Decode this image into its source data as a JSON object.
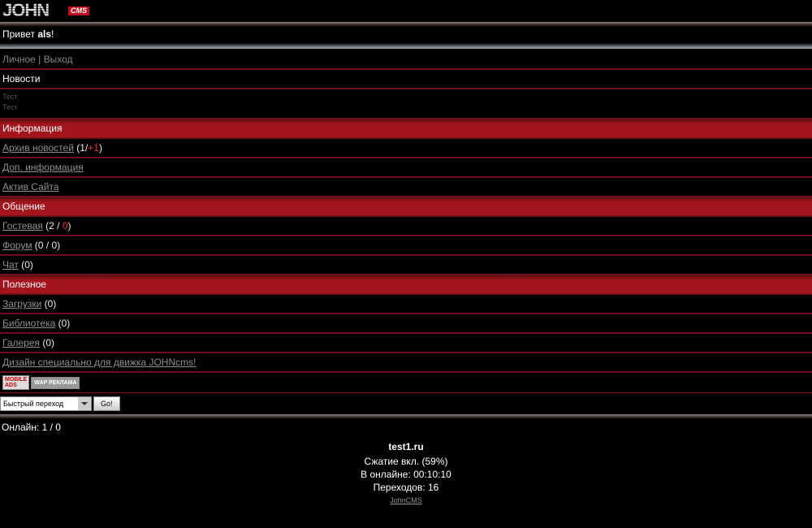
{
  "logo": {
    "main": "JOHN",
    "sub": "CMS"
  },
  "greeting": {
    "prefix": "Привет ",
    "user": "als",
    "suffix": "!"
  },
  "user_menu": {
    "items": [
      "Личное",
      "Выход"
    ],
    "separator": " | "
  },
  "news": {
    "title": "Новости",
    "items": [
      "Тест",
      "Тест"
    ]
  },
  "sections": [
    {
      "title": "Информация",
      "items": [
        {
          "link": "Архив новостей",
          "counter": {
            "before": " (1/",
            "new": "+1",
            "after": ")"
          }
        },
        {
          "link": "Доп. информация"
        },
        {
          "link": "Актив Сайта"
        }
      ]
    },
    {
      "title": "Общение",
      "items": [
        {
          "link": "Гостевая",
          "counter": {
            "before": " (2 / ",
            "new": "0",
            "after": ")"
          }
        },
        {
          "link": "Форум",
          "counter": {
            "before": " (0 / 0)"
          }
        },
        {
          "link": "Чат",
          "counter": {
            "before": " (0)"
          }
        }
      ]
    },
    {
      "title": "Полезное",
      "items": [
        {
          "link": "Загрузки",
          "counter": {
            "before": " (0)"
          }
        },
        {
          "link": "Библиотека",
          "counter": {
            "before": " (0)"
          }
        },
        {
          "link": "Галерея",
          "counter": {
            "before": " (0)"
          }
        }
      ]
    }
  ],
  "design_link": "Дизайн специально для движка JOHNcms!",
  "banners": [
    [
      "MOBILE",
      "ADS"
    ],
    [
      "WAP РЕКЛАМА"
    ]
  ],
  "quick_jump": {
    "select": "Быстрый переход",
    "button": "Go!"
  },
  "online": "Онлайн: 1 / 0",
  "footer": {
    "site": "test1.ru",
    "lines": [
      "Сжатие вкл. (59%)",
      "В онлайне: 00:10:10",
      "Переходов: 16"
    ],
    "copyright": "JohnCMS"
  }
}
